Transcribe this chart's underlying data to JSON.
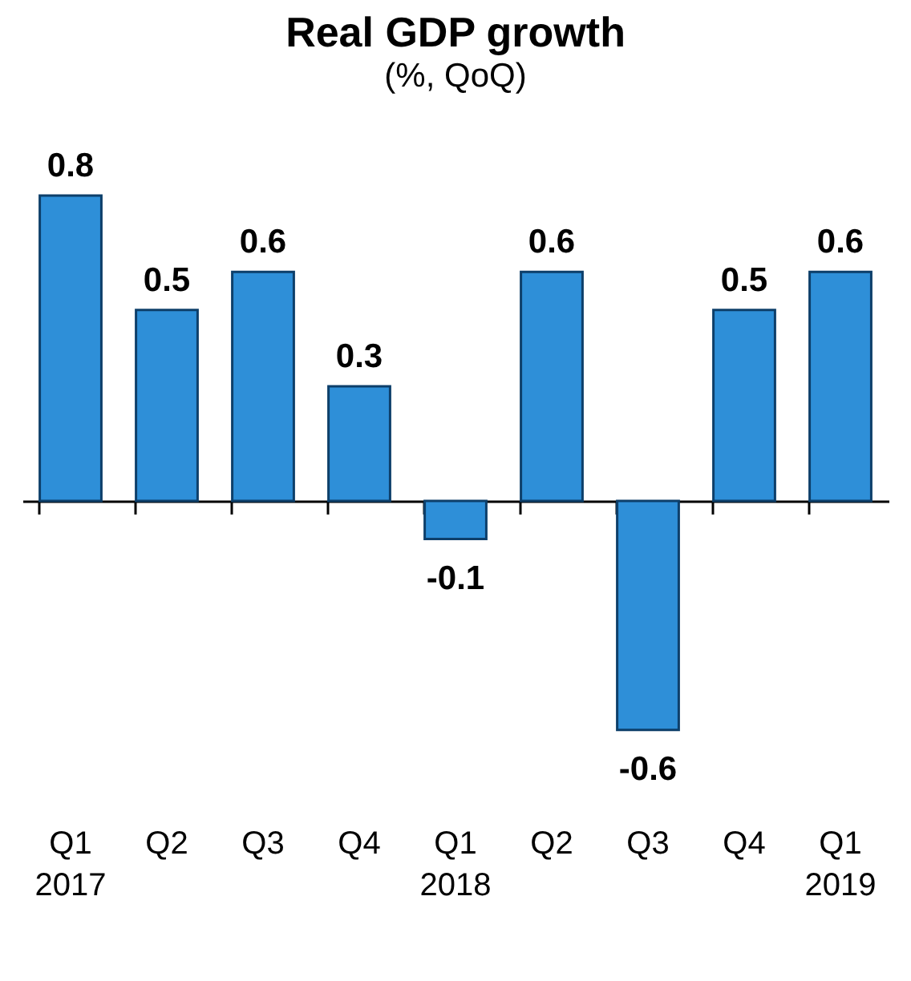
{
  "chart_data": {
    "type": "bar",
    "title": "Real GDP growth",
    "subtitle": "(%, QoQ)",
    "categories": [
      "Q1\n2017",
      "Q2",
      "Q3",
      "Q4",
      "Q1\n2018",
      "Q2",
      "Q3",
      "Q4",
      "Q1\n2019"
    ],
    "values": [
      0.8,
      0.5,
      0.6,
      0.3,
      -0.1,
      0.6,
      -0.6,
      0.5,
      0.6
    ],
    "color": "#2e8fd8",
    "data_labels": true,
    "grid": false
  }
}
